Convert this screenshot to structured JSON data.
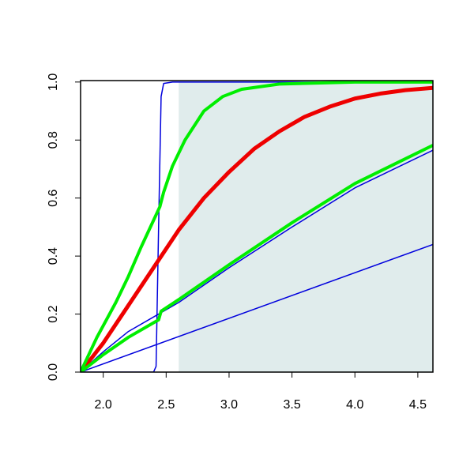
{
  "chart_data": {
    "type": "line",
    "xlim": [
      1.82,
      4.62
    ],
    "ylim": [
      0,
      1.005
    ],
    "xticks": [
      {
        "value": 2,
        "label": "2.0"
      },
      2.5,
      {
        "value": 3,
        "label": "3.0"
      },
      3.5,
      {
        "value": 4,
        "label": "4.0"
      },
      4.5
    ],
    "yticks": [
      {
        "value": 0,
        "label": "0.0"
      },
      0.2,
      0.4,
      0.6,
      0.8,
      {
        "value": 1,
        "label": "1.0"
      }
    ],
    "shaded_region": {
      "x0": 2.6,
      "y0": 0,
      "y1": 1,
      "color": "#e0ecec"
    },
    "series": [
      {
        "color": "#0000dd",
        "line_width": 1.5,
        "x": [
          1.82,
          2.0,
          2.2,
          2.44,
          2.6,
          3.0,
          3.5,
          4.0,
          4.62
        ],
        "values": [
          0,
          0.07,
          0.14,
          0.2,
          0.24,
          0.36,
          0.5,
          0.635,
          0.765
        ]
      },
      {
        "color": "#0000dd",
        "line_width": 1.5,
        "x": [
          1.82,
          4.62
        ],
        "values": [
          0,
          0.44
        ]
      },
      {
        "color": "#0000dd",
        "line_width": 1.5,
        "x": [
          1.82,
          2.4,
          2.42,
          2.44,
          2.46,
          2.48,
          2.55,
          4.62
        ],
        "values": [
          0,
          0,
          0.02,
          0.5,
          0.95,
          0.995,
          1,
          1
        ]
      },
      {
        "color": "#ee0000",
        "line_width": 5,
        "x": [
          1.82,
          2.0,
          2.2,
          2.4,
          2.6,
          2.8,
          3.0,
          3.2,
          3.4,
          3.6,
          3.8,
          4.0,
          4.2,
          4.4,
          4.62
        ],
        "values": [
          0,
          0.1,
          0.23,
          0.36,
          0.49,
          0.6,
          0.69,
          0.77,
          0.83,
          0.88,
          0.915,
          0.943,
          0.96,
          0.972,
          0.98
        ]
      },
      {
        "color": "#00ee00",
        "line_width": 4,
        "x": [
          1.82,
          2.0,
          2.2,
          2.44,
          2.46,
          2.6,
          3.0,
          3.5,
          4.0,
          4.62
        ],
        "values": [
          0,
          0.06,
          0.12,
          0.18,
          0.21,
          0.25,
          0.37,
          0.515,
          0.65,
          0.782
        ]
      },
      {
        "color": "#00ee00",
        "line_width": 4,
        "x": [
          1.82,
          1.95,
          2.1,
          2.2,
          2.3,
          2.45,
          2.48,
          2.55,
          2.65,
          2.8,
          2.95,
          3.1,
          3.4,
          4.0,
          4.62
        ],
        "values": [
          0,
          0.12,
          0.24,
          0.33,
          0.43,
          0.57,
          0.62,
          0.71,
          0.8,
          0.9,
          0.95,
          0.975,
          0.993,
          1,
          1
        ]
      }
    ]
  }
}
